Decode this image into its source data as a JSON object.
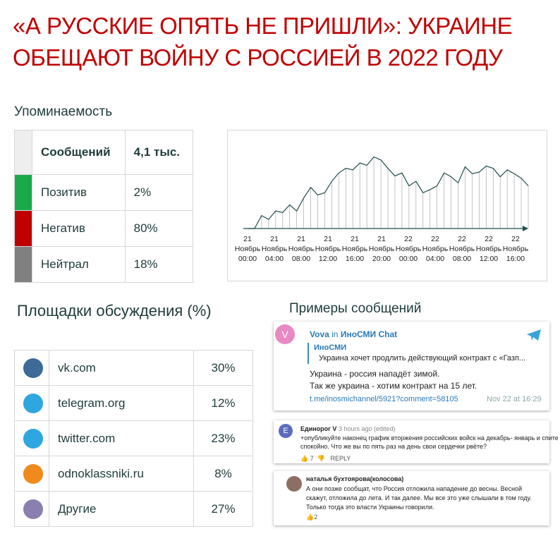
{
  "header": {
    "title_lines": [
      "«А РУССКИЕ ОПЯТЬ НЕ ПРИШЛИ»: УКРАИНЕ",
      "ОБЕЩАЮТ ВОЙНУ С РОССИЕЙ В 2022 ГОДУ"
    ]
  },
  "mentions": {
    "title": "Упоминаемость",
    "rows": [
      {
        "label": "Сообщений",
        "value": "4,1 тыс.",
        "color": "#eeeeee"
      },
      {
        "label": "Позитив",
        "value": "2%",
        "color": "#1aaa4b"
      },
      {
        "label": "Негатив",
        "value": "80%",
        "color": "#c00000"
      },
      {
        "label": "Нейтрал",
        "value": "18%",
        "color": "#808080"
      }
    ]
  },
  "chart_data": {
    "type": "line",
    "color": "#1e4d4d",
    "ylim": [
      0,
      100
    ],
    "x_labels": [
      [
        "21",
        "Ноябрь",
        "00:00"
      ],
      [
        "21",
        "Ноябрь",
        "04:00"
      ],
      [
        "21",
        "Ноябрь",
        "08:00"
      ],
      [
        "21",
        "Ноябрь",
        "12:00"
      ],
      [
        "21",
        "Ноябрь",
        "16:00"
      ],
      [
        "21",
        "Ноябрь",
        "20:00"
      ],
      [
        "22",
        "Ноябрь",
        "00:00"
      ],
      [
        "22",
        "Ноябрь",
        "04:00"
      ],
      [
        "22",
        "Ноябрь",
        "08:00"
      ],
      [
        "22",
        "Ноябрь",
        "12:00"
      ],
      [
        "22",
        "Ноябрь",
        "16:00"
      ]
    ],
    "values": [
      0,
      0,
      17,
      12,
      23,
      21,
      31,
      23,
      40,
      54,
      44,
      47,
      62,
      73,
      79,
      77,
      86,
      83,
      94,
      90,
      79,
      69,
      73,
      56,
      62,
      47,
      51,
      56,
      73,
      68,
      60,
      81,
      72,
      74,
      82,
      79,
      68,
      77,
      72,
      66,
      56
    ]
  },
  "platforms": {
    "title": "Площадки обсуждения (%)",
    "rows": [
      {
        "name": "vk.com",
        "value": "30%",
        "color": "#3d6a97"
      },
      {
        "name": "telegram.org",
        "value": "12%",
        "color": "#2ea6e0"
      },
      {
        "name": "twitter.com",
        "value": "23%",
        "color": "#2ea6e0"
      },
      {
        "name": "odnoklassniki.ru",
        "value": "8%",
        "color": "#f08a1c"
      },
      {
        "name": "Другие",
        "value": "27%",
        "color": "#8a7fb0"
      }
    ]
  },
  "messages": {
    "title": "Примеры сообщений",
    "cards": [
      {
        "avatar": "V",
        "author": "Vova",
        "in": "in",
        "channel": "ИноСМИ Chat",
        "quote_title": "ИноСМИ",
        "quote_text": "Украина хочет продлить действующий контракт с «Газп...",
        "text": [
          "Украина - россия нападёт зимой.",
          "Так же украина - хотим контракт на 15 лет."
        ],
        "link": "t.me/inosmichannel/5921?comment=58105",
        "date": "Nov 22 at 16:29"
      },
      {
        "avatar": "E",
        "author": "Единорог V",
        "time": "3 hours ago (edited)",
        "text": [
          "+опубликуйте наконец график вторжения российских войск на декабрь- январь и спите",
          "спокойно. Что же вы по пять раз на день свои сердечки рвёте?"
        ],
        "likes": "7",
        "reply": "REPLY"
      },
      {
        "author": "наталья бухтоярова(колосова)",
        "text": [
          "А они позже сообщат, что Россия отложила нападение до весны. Весной",
          "скажут, отложила до лета. И так далее. Мы все это уже слышали в том году.",
          "Только тогда это власти Украины говорили."
        ],
        "likes": "2"
      }
    ]
  }
}
